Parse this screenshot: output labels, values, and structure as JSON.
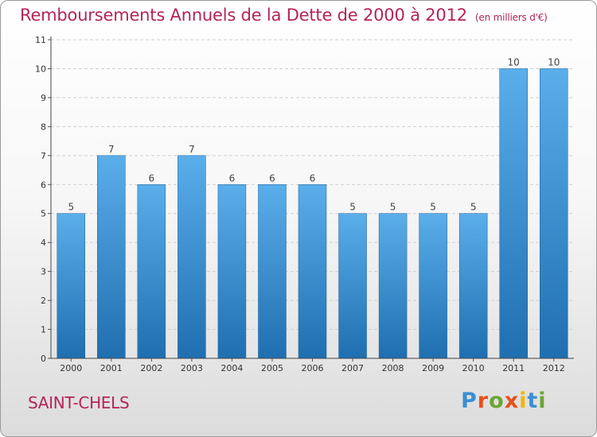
{
  "title": "Remboursements Annuels de la Dette de 2000 à 2012",
  "subtitle": "(en milliers d'€)",
  "commune": "SAINT-CHELS",
  "brand": "Proxiti",
  "colors": {
    "title": "#b4245a",
    "bar_top": "#5aaeea",
    "bar_bottom": "#1f6fb0",
    "logo": [
      "#3b8fd0",
      "#e8501c",
      "#6aa633",
      "#e8501c",
      "#f2b705",
      "#3b8fd0",
      "#6aa633"
    ]
  },
  "chart_data": {
    "type": "bar",
    "title": "Remboursements Annuels de la Dette de 2000 à 2012",
    "subtitle": "(en milliers d'€)",
    "categories": [
      "2000",
      "2001",
      "2002",
      "2003",
      "2004",
      "2005",
      "2006",
      "2007",
      "2008",
      "2009",
      "2010",
      "2011",
      "2012"
    ],
    "values": [
      5,
      7,
      6,
      7,
      6,
      6,
      6,
      5,
      5,
      5,
      5,
      10,
      10
    ],
    "data_labels": [
      "5",
      "7",
      "6",
      "7",
      "6",
      "6",
      "6",
      "5",
      "5",
      "5",
      "5",
      "10",
      "10"
    ],
    "ylim": [
      0,
      11
    ],
    "yticks": [
      0,
      1,
      2,
      3,
      4,
      5,
      6,
      7,
      8,
      9,
      10,
      11
    ],
    "grid": true
  }
}
